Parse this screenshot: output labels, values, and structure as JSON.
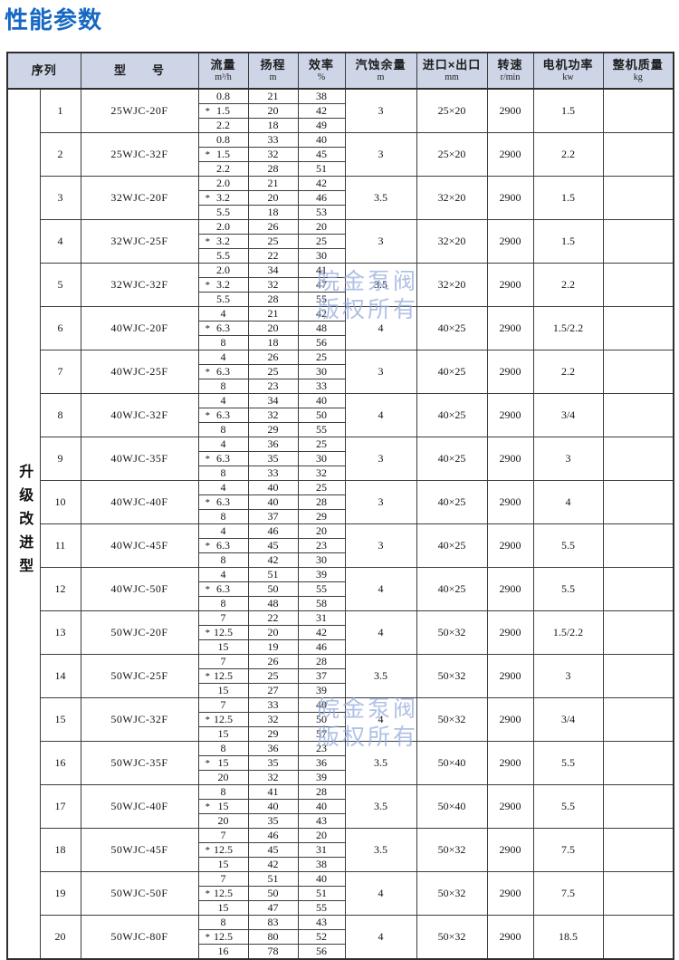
{
  "page": {
    "title": "性能参数"
  },
  "colors": {
    "title_blue": "#1668c4",
    "header_bg": "#cdd5e7",
    "border": "#3c3c3c",
    "watermark_blue": "#96acde"
  },
  "table": {
    "group_label": "升级改进型",
    "star": "*",
    "columns": [
      {
        "label": "序列",
        "unit": ""
      },
      {
        "label": "型　　号",
        "unit": ""
      },
      {
        "label": "流量",
        "unit": "m³/h"
      },
      {
        "label": "扬程",
        "unit": "m"
      },
      {
        "label": "效率",
        "unit": "%"
      },
      {
        "label": "汽蚀余量",
        "unit": "m"
      },
      {
        "label": "进口×出口",
        "unit": "mm"
      },
      {
        "label": "转速",
        "unit": "r/min"
      },
      {
        "label": "电机功率",
        "unit": "kw"
      },
      {
        "label": "整机质量",
        "unit": "kg"
      }
    ],
    "rows": [
      {
        "seq": "1",
        "model": "25WJC-20F",
        "flow": [
          "0.8",
          "1.5",
          "2.2"
        ],
        "head": [
          "21",
          "20",
          "18"
        ],
        "eff": [
          "38",
          "42",
          "49"
        ],
        "npsh": "3",
        "inlet_outlet": "25×20",
        "speed": "2900",
        "power": "1.5",
        "weight": ""
      },
      {
        "seq": "2",
        "model": "25WJC-32F",
        "flow": [
          "0.8",
          "1.5",
          "2.2"
        ],
        "head": [
          "33",
          "32",
          "28"
        ],
        "eff": [
          "40",
          "45",
          "51"
        ],
        "npsh": "3",
        "inlet_outlet": "25×20",
        "speed": "2900",
        "power": "2.2",
        "weight": ""
      },
      {
        "seq": "3",
        "model": "32WJC-20F",
        "flow": [
          "2.0",
          "3.2",
          "5.5"
        ],
        "head": [
          "21",
          "20",
          "18"
        ],
        "eff": [
          "42",
          "46",
          "53"
        ],
        "npsh": "3.5",
        "inlet_outlet": "32×20",
        "speed": "2900",
        "power": "1.5",
        "weight": ""
      },
      {
        "seq": "4",
        "model": "32WJC-25F",
        "flow": [
          "2.0",
          "3.2",
          "5.5"
        ],
        "head": [
          "26",
          "25",
          "22"
        ],
        "eff": [
          "20",
          "25",
          "30"
        ],
        "npsh": "3",
        "inlet_outlet": "32×20",
        "speed": "2900",
        "power": "1.5",
        "weight": ""
      },
      {
        "seq": "5",
        "model": "32WJC-32F",
        "flow": [
          "2.0",
          "3.2",
          "5.5"
        ],
        "head": [
          "34",
          "32",
          "28"
        ],
        "eff": [
          "41",
          "47",
          "55"
        ],
        "npsh": "3.5",
        "inlet_outlet": "32×20",
        "speed": "2900",
        "power": "2.2",
        "weight": ""
      },
      {
        "seq": "6",
        "model": "40WJC-20F",
        "flow": [
          "4",
          "6.3",
          "8"
        ],
        "head": [
          "21",
          "20",
          "18"
        ],
        "eff": [
          "42",
          "48",
          "56"
        ],
        "npsh": "4",
        "inlet_outlet": "40×25",
        "speed": "2900",
        "power": "1.5/2.2",
        "weight": ""
      },
      {
        "seq": "7",
        "model": "40WJC-25F",
        "flow": [
          "4",
          "6.3",
          "8"
        ],
        "head": [
          "26",
          "25",
          "23"
        ],
        "eff": [
          "25",
          "30",
          "33"
        ],
        "npsh": "3",
        "inlet_outlet": "40×25",
        "speed": "2900",
        "power": "2.2",
        "weight": ""
      },
      {
        "seq": "8",
        "model": "40WJC-32F",
        "flow": [
          "4",
          "6.3",
          "8"
        ],
        "head": [
          "34",
          "32",
          "29"
        ],
        "eff": [
          "40",
          "50",
          "55"
        ],
        "npsh": "4",
        "inlet_outlet": "40×25",
        "speed": "2900",
        "power": "3/4",
        "weight": ""
      },
      {
        "seq": "9",
        "model": "40WJC-35F",
        "flow": [
          "4",
          "6.3",
          "8"
        ],
        "head": [
          "36",
          "35",
          "33"
        ],
        "eff": [
          "25",
          "30",
          "32"
        ],
        "npsh": "3",
        "inlet_outlet": "40×25",
        "speed": "2900",
        "power": "3",
        "weight": ""
      },
      {
        "seq": "10",
        "model": "40WJC-40F",
        "flow": [
          "4",
          "6.3",
          "8"
        ],
        "head": [
          "40",
          "40",
          "37"
        ],
        "eff": [
          "25",
          "28",
          "29"
        ],
        "npsh": "3",
        "inlet_outlet": "40×25",
        "speed": "2900",
        "power": "4",
        "weight": ""
      },
      {
        "seq": "11",
        "model": "40WJC-45F",
        "flow": [
          "4",
          "6.3",
          "8"
        ],
        "head": [
          "46",
          "45",
          "42"
        ],
        "eff": [
          "20",
          "23",
          "30"
        ],
        "npsh": "3",
        "inlet_outlet": "40×25",
        "speed": "2900",
        "power": "5.5",
        "weight": ""
      },
      {
        "seq": "12",
        "model": "40WJC-50F",
        "flow": [
          "4",
          "6.3",
          "8"
        ],
        "head": [
          "51",
          "50",
          "48"
        ],
        "eff": [
          "39",
          "55",
          "58"
        ],
        "npsh": "4",
        "inlet_outlet": "40×25",
        "speed": "2900",
        "power": "5.5",
        "weight": ""
      },
      {
        "seq": "13",
        "model": "50WJC-20F",
        "flow": [
          "7",
          "12.5",
          "15"
        ],
        "head": [
          "22",
          "20",
          "19"
        ],
        "eff": [
          "31",
          "42",
          "46"
        ],
        "npsh": "4",
        "inlet_outlet": "50×32",
        "speed": "2900",
        "power": "1.5/2.2",
        "weight": ""
      },
      {
        "seq": "14",
        "model": "50WJC-25F",
        "flow": [
          "7",
          "12.5",
          "15"
        ],
        "head": [
          "26",
          "25",
          "27"
        ],
        "eff": [
          "28",
          "37",
          "39"
        ],
        "npsh": "3.5",
        "inlet_outlet": "50×32",
        "speed": "2900",
        "power": "3",
        "weight": ""
      },
      {
        "seq": "15",
        "model": "50WJC-32F",
        "flow": [
          "7",
          "12.5",
          "15"
        ],
        "head": [
          "33",
          "32",
          "29"
        ],
        "eff": [
          "40",
          "50",
          "57"
        ],
        "npsh": "4",
        "inlet_outlet": "50×32",
        "speed": "2900",
        "power": "3/4",
        "weight": ""
      },
      {
        "seq": "16",
        "model": "50WJC-35F",
        "flow": [
          "8",
          "15",
          "20"
        ],
        "head": [
          "36",
          "35",
          "32"
        ],
        "eff": [
          "23",
          "36",
          "39"
        ],
        "npsh": "3.5",
        "inlet_outlet": "50×40",
        "speed": "2900",
        "power": "5.5",
        "weight": ""
      },
      {
        "seq": "17",
        "model": "50WJC-40F",
        "flow": [
          "8",
          "15",
          "20"
        ],
        "head": [
          "41",
          "40",
          "35"
        ],
        "eff": [
          "28",
          "40",
          "43"
        ],
        "npsh": "3.5",
        "inlet_outlet": "50×40",
        "speed": "2900",
        "power": "5.5",
        "weight": ""
      },
      {
        "seq": "18",
        "model": "50WJC-45F",
        "flow": [
          "7",
          "12.5",
          "15"
        ],
        "head": [
          "46",
          "45",
          "42"
        ],
        "eff": [
          "20",
          "31",
          "38"
        ],
        "npsh": "3.5",
        "inlet_outlet": "50×32",
        "speed": "2900",
        "power": "7.5",
        "weight": ""
      },
      {
        "seq": "19",
        "model": "50WJC-50F",
        "flow": [
          "7",
          "12.5",
          "15"
        ],
        "head": [
          "51",
          "50",
          "47"
        ],
        "eff": [
          "40",
          "51",
          "55"
        ],
        "npsh": "4",
        "inlet_outlet": "50×32",
        "speed": "2900",
        "power": "7.5",
        "weight": ""
      },
      {
        "seq": "20",
        "model": "50WJC-80F",
        "flow": [
          "8",
          "12.5",
          "16"
        ],
        "head": [
          "83",
          "80",
          "78"
        ],
        "eff": [
          "43",
          "52",
          "56"
        ],
        "npsh": "4",
        "inlet_outlet": "50×32",
        "speed": "2900",
        "power": "18.5",
        "weight": ""
      }
    ]
  },
  "watermarks": [
    {
      "line1": "皖金泵阀",
      "line2": "版权所有"
    },
    {
      "line1": "皖金泵阀",
      "line2": "版权所有"
    }
  ]
}
